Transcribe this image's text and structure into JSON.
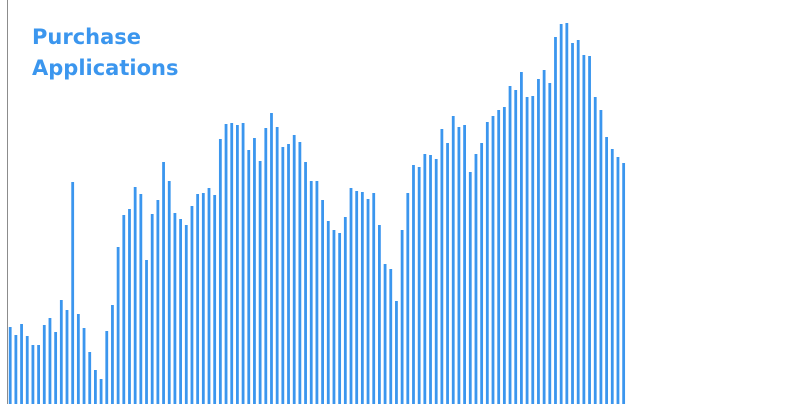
{
  "colors": {
    "bar": "#3b96ee",
    "title": "#3b96ee",
    "axis": "#8c8c8c",
    "background": "#ffffff"
  },
  "chart_data": {
    "type": "bar",
    "title": [
      "Purchase",
      "Applications"
    ],
    "xlabel": "",
    "ylabel": "",
    "grid": false,
    "ylim": [
      0,
      400
    ],
    "values": [
      77,
      69,
      80,
      68,
      59,
      59,
      79,
      86,
      72,
      104,
      94,
      222,
      90,
      76,
      52,
      34,
      25,
      73,
      99,
      157,
      189,
      195,
      217,
      210,
      144,
      190,
      204,
      242,
      223,
      191,
      185,
      179,
      198,
      210,
      211,
      216,
      209,
      265,
      280,
      281,
      279,
      281,
      254,
      266,
      243,
      276,
      291,
      277,
      257,
      260,
      269,
      262,
      242,
      223,
      223,
      204,
      183,
      174,
      171,
      187,
      216,
      213,
      212,
      205,
      211,
      179,
      140,
      135,
      103,
      174,
      211,
      239,
      237,
      250,
      249,
      245,
      275,
      261,
      288,
      277,
      279,
      232,
      250,
      261,
      282,
      288,
      294,
      297,
      318,
      314,
      332,
      307,
      308,
      325,
      334,
      321,
      367,
      380,
      381,
      361,
      364,
      349,
      348,
      307,
      294,
      267,
      255,
      247,
      241
    ]
  }
}
